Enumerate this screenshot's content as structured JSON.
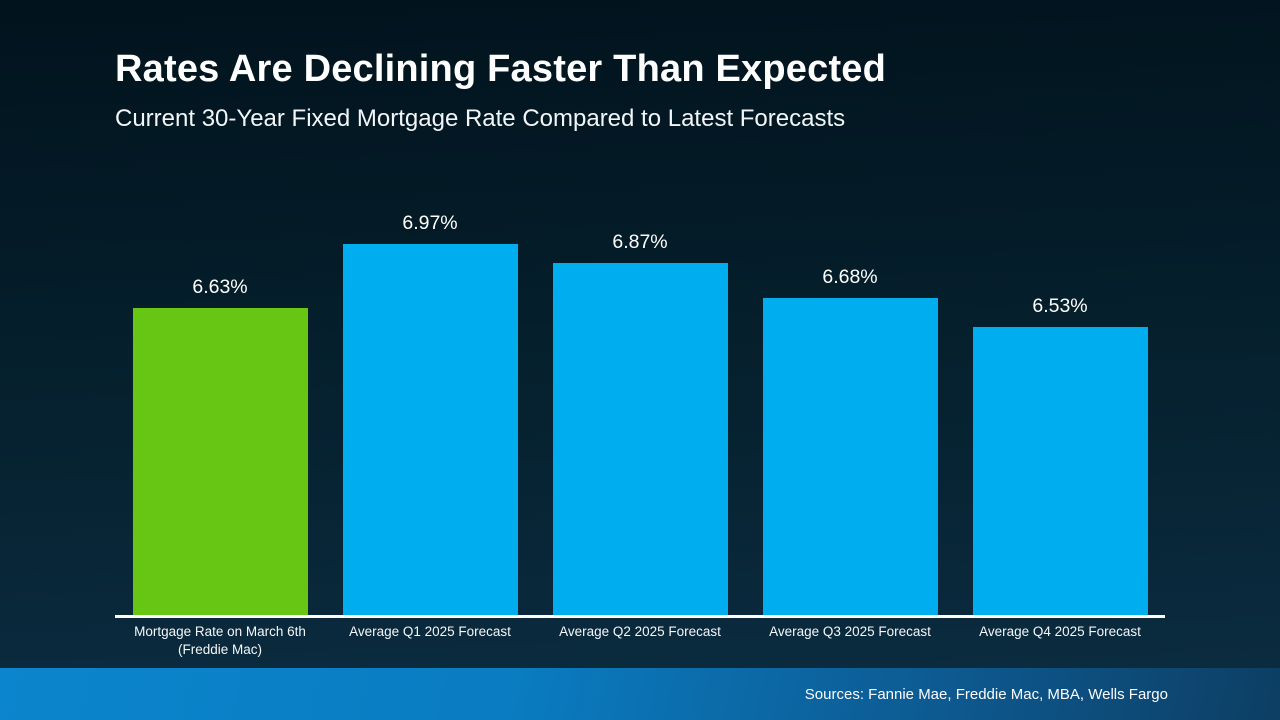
{
  "slide": {
    "title": "Rates Are Declining Faster Than Expected",
    "subtitle": "Current 30-Year Fixed Mortgage Rate Compared to Latest Forecasts",
    "source_note": "Sources: Fannie Mae, Freddie Mac, MBA, Wells Fargo"
  },
  "colors": {
    "background_top": "#01131d",
    "background_bottom": "#0c2d42",
    "bar_current_green": "#67c613",
    "bar_forecast_blue": "#00aeef",
    "axis_line": "#ffffff",
    "footer_gradient_left": "#0b85cd",
    "footer_gradient_right": "#0d3e63",
    "text": "#ffffff"
  },
  "chart_data": {
    "type": "bar",
    "title": "Rates Are Declining Faster Than Expected",
    "subtitle": "Current 30-Year Fixed Mortgage Rate Compared to Latest Forecasts",
    "categories": [
      "Mortgage Rate on March 6th (Freddie Mac)",
      "Average Q1 2025 Forecast",
      "Average Q2 2025 Forecast",
      "Average Q3 2025 Forecast",
      "Average Q4 2025 Forecast"
    ],
    "values": [
      6.63,
      6.97,
      6.87,
      6.68,
      6.53
    ],
    "value_labels": [
      "6.63%",
      "6.97%",
      "6.87%",
      "6.68%",
      "6.53%"
    ],
    "bar_colors": [
      "#67c613",
      "#00aeef",
      "#00aeef",
      "#00aeef",
      "#00aeef"
    ],
    "xlabel": "",
    "ylabel": "",
    "ylim": [
      5.0,
      7.25
    ],
    "gridlines": false,
    "legend_position": "none",
    "source": "Sources: Fannie Mae, Freddie Mac, MBA, Wells Fargo"
  }
}
